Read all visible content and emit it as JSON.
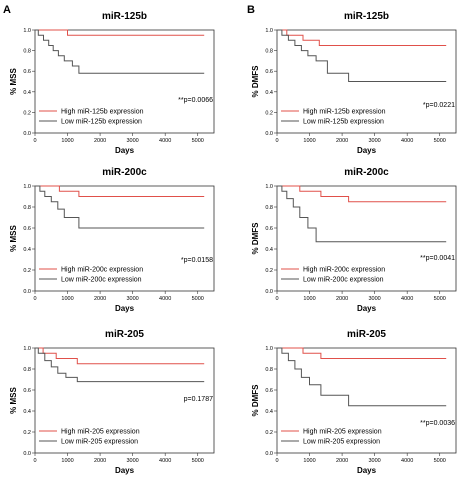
{
  "panels": [
    {
      "letter": "A"
    },
    {
      "letter": "B"
    }
  ],
  "chart_data": [
    {
      "type": "line",
      "title": "miR-125b",
      "xlabel": "Days",
      "ylabel": "% MSS",
      "xlim": [
        0,
        5500
      ],
      "ylim": [
        0,
        1.0
      ],
      "xticks": [
        "0",
        "1000",
        "2000",
        "3000",
        "4000",
        "5000"
      ],
      "yticks": [
        "0.0",
        "0.2",
        "0.4",
        "0.6",
        "0.8",
        "1.0"
      ],
      "annotation": "**p=0.0066",
      "legend_position": "bottom-left",
      "series": [
        {
          "name": "High miR-125b expression",
          "color": "#e0504a",
          "x": [
            0,
            1000,
            1000,
            5200
          ],
          "y": [
            1.0,
            1.0,
            0.95,
            0.95
          ]
        },
        {
          "name": "Low miR-125b expression",
          "color": "#555555",
          "x": [
            0,
            100,
            100,
            260,
            260,
            420,
            420,
            560,
            560,
            720,
            720,
            900,
            900,
            1150,
            1150,
            1350,
            1350,
            5200
          ],
          "y": [
            1.0,
            1.0,
            0.95,
            0.95,
            0.9,
            0.9,
            0.85,
            0.85,
            0.8,
            0.8,
            0.75,
            0.75,
            0.7,
            0.7,
            0.65,
            0.65,
            0.58,
            0.58
          ]
        }
      ]
    },
    {
      "type": "line",
      "title": "miR-125b",
      "xlabel": "Days",
      "ylabel": "% DMFS",
      "xlim": [
        0,
        5500
      ],
      "ylim": [
        0,
        1.0
      ],
      "xticks": [
        "0",
        "1000",
        "2000",
        "3000",
        "4000",
        "5000"
      ],
      "yticks": [
        "0.0",
        "0.2",
        "0.4",
        "0.6",
        "0.8",
        "1.0"
      ],
      "annotation": "*p=0.0221",
      "legend_position": "bottom-left",
      "series": [
        {
          "name": "High miR-125b expression",
          "color": "#e0504a",
          "x": [
            0,
            300,
            300,
            800,
            800,
            1300,
            1300,
            5200
          ],
          "y": [
            1.0,
            1.0,
            0.95,
            0.95,
            0.9,
            0.9,
            0.85,
            0.85
          ]
        },
        {
          "name": "Low miR-125b expression",
          "color": "#555555",
          "x": [
            0,
            150,
            150,
            350,
            350,
            550,
            550,
            750,
            750,
            950,
            950,
            1200,
            1200,
            1550,
            1550,
            2200,
            2200,
            5200
          ],
          "y": [
            1.0,
            1.0,
            0.95,
            0.95,
            0.9,
            0.9,
            0.85,
            0.85,
            0.8,
            0.8,
            0.75,
            0.75,
            0.7,
            0.7,
            0.58,
            0.58,
            0.5,
            0.5
          ]
        }
      ]
    },
    {
      "type": "line",
      "title": "miR-200c",
      "xlabel": "Days",
      "ylabel": "% MSS",
      "xlim": [
        0,
        5500
      ],
      "ylim": [
        0,
        1.0
      ],
      "xticks": [
        "0",
        "1000",
        "2000",
        "3000",
        "4000",
        "5000"
      ],
      "yticks": [
        "0.0",
        "0.2",
        "0.4",
        "0.6",
        "0.8",
        "1.0"
      ],
      "annotation": "*p=0.0158",
      "legend_position": "bottom-left",
      "series": [
        {
          "name": "High miR-200c expression",
          "color": "#e0504a",
          "x": [
            0,
            750,
            750,
            1350,
            1350,
            5200
          ],
          "y": [
            1.0,
            1.0,
            0.95,
            0.95,
            0.9,
            0.9
          ]
        },
        {
          "name": "Low miR-200c expression",
          "color": "#555555",
          "x": [
            0,
            150,
            150,
            300,
            300,
            500,
            500,
            700,
            700,
            900,
            900,
            1350,
            1350,
            5200
          ],
          "y": [
            1.0,
            1.0,
            0.95,
            0.95,
            0.9,
            0.9,
            0.85,
            0.85,
            0.78,
            0.78,
            0.7,
            0.7,
            0.6,
            0.6
          ]
        }
      ]
    },
    {
      "type": "line",
      "title": "miR-200c",
      "xlabel": "Days",
      "ylabel": "% DMFS",
      "xlim": [
        0,
        5500
      ],
      "ylim": [
        0,
        1.0
      ],
      "xticks": [
        "0",
        "1000",
        "2000",
        "3000",
        "4000",
        "5000"
      ],
      "yticks": [
        "0.0",
        "0.2",
        "0.4",
        "0.6",
        "0.8",
        "1.0"
      ],
      "annotation": "**p=0.0041",
      "legend_position": "bottom-left",
      "series": [
        {
          "name": "High miR-200c expression",
          "color": "#e0504a",
          "x": [
            0,
            700,
            700,
            1350,
            1350,
            2200,
            2200,
            5200
          ],
          "y": [
            1.0,
            1.0,
            0.95,
            0.95,
            0.9,
            0.9,
            0.85,
            0.85
          ]
        },
        {
          "name": "Low miR-200c expression",
          "color": "#555555",
          "x": [
            0,
            150,
            150,
            300,
            300,
            500,
            500,
            700,
            700,
            950,
            950,
            1200,
            1200,
            5200
          ],
          "y": [
            1.0,
            1.0,
            0.95,
            0.95,
            0.88,
            0.88,
            0.8,
            0.8,
            0.7,
            0.7,
            0.6,
            0.6,
            0.47,
            0.47
          ]
        }
      ]
    },
    {
      "type": "line",
      "title": "miR-205",
      "xlabel": "Days",
      "ylabel": "% MSS",
      "xlim": [
        0,
        5500
      ],
      "ylim": [
        0,
        1.0
      ],
      "xticks": [
        "0",
        "1000",
        "2000",
        "3000",
        "4000",
        "5000"
      ],
      "yticks": [
        "0.0",
        "0.2",
        "0.4",
        "0.6",
        "0.8",
        "1.0"
      ],
      "annotation": "p=0.1787",
      "legend_position": "bottom-left",
      "series": [
        {
          "name": "High miR-205 expression",
          "color": "#e0504a",
          "x": [
            0,
            250,
            250,
            650,
            650,
            1300,
            1300,
            5200
          ],
          "y": [
            1.0,
            1.0,
            0.95,
            0.95,
            0.9,
            0.9,
            0.85,
            0.85
          ]
        },
        {
          "name": "Low miR-205 expression",
          "color": "#555555",
          "x": [
            0,
            100,
            100,
            300,
            300,
            500,
            500,
            700,
            700,
            950,
            950,
            1300,
            1300,
            5200
          ],
          "y": [
            1.0,
            1.0,
            0.95,
            0.95,
            0.88,
            0.88,
            0.82,
            0.82,
            0.76,
            0.76,
            0.72,
            0.72,
            0.68,
            0.68
          ]
        }
      ]
    },
    {
      "type": "line",
      "title": "miR-205",
      "xlabel": "Days",
      "ylabel": "% DMFS",
      "xlim": [
        0,
        5500
      ],
      "ylim": [
        0,
        1.0
      ],
      "xticks": [
        "0",
        "1000",
        "2000",
        "3000",
        "4000",
        "5000"
      ],
      "yticks": [
        "0.0",
        "0.2",
        "0.4",
        "0.6",
        "0.8",
        "1.0"
      ],
      "annotation": "**p=0.0036",
      "legend_position": "bottom-left",
      "series": [
        {
          "name": "High miR-205 expression",
          "color": "#e0504a",
          "x": [
            0,
            800,
            800,
            1350,
            1350,
            5200
          ],
          "y": [
            1.0,
            1.0,
            0.95,
            0.95,
            0.9,
            0.9
          ]
        },
        {
          "name": "Low miR-205 expression",
          "color": "#555555",
          "x": [
            0,
            150,
            150,
            350,
            350,
            550,
            550,
            750,
            750,
            1000,
            1000,
            1350,
            1350,
            2200,
            2200,
            5200
          ],
          "y": [
            1.0,
            1.0,
            0.95,
            0.95,
            0.88,
            0.88,
            0.8,
            0.8,
            0.72,
            0.72,
            0.65,
            0.65,
            0.55,
            0.55,
            0.45,
            0.45
          ]
        }
      ]
    }
  ]
}
